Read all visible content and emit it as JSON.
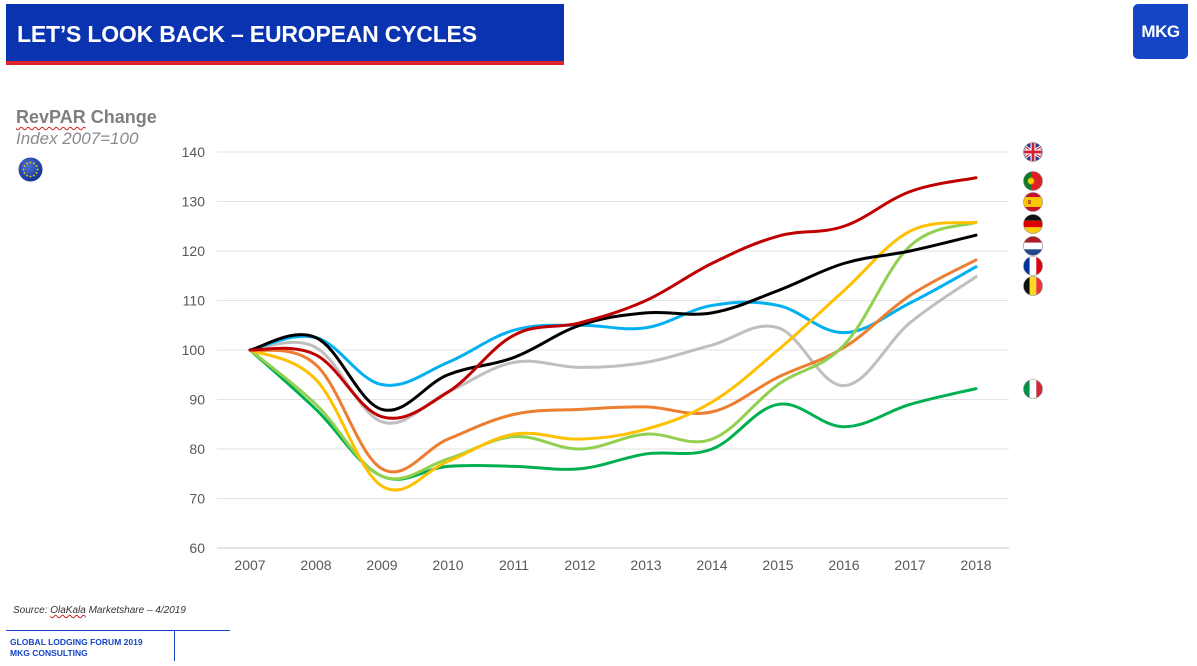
{
  "header": {
    "title": "LET’S LOOK BACK – EUROPEAN CYCLES",
    "logo": "MKG",
    "accent_color": "#0a33b0",
    "underline_color": "#e0242e"
  },
  "chart_data": {
    "type": "line",
    "title": "RevPAR Change",
    "subtitle": "Index 2007=100",
    "xlabel": "",
    "ylabel": "",
    "ylim": [
      60,
      140
    ],
    "yticks": [
      "60",
      "70",
      "80",
      "90",
      "100",
      "110",
      "120",
      "130",
      "140"
    ],
    "categories": [
      "2007",
      "2008",
      "2009",
      "2010",
      "2011",
      "2012",
      "2013",
      "2014",
      "2015",
      "2016",
      "2017",
      "2018"
    ],
    "grid": true,
    "legend": "flag icons at right",
    "series": [
      {
        "color": "#c00000",
        "values": [
          100,
          99,
          86.5,
          91.5,
          103,
          105.5,
          110,
          117.5,
          123,
          125,
          132,
          134.8
        ]
      },
      {
        "color": "#000000",
        "values": [
          100,
          102.5,
          88,
          95,
          98.5,
          105,
          107.5,
          107.5,
          112,
          117.5,
          120,
          123.2
        ]
      },
      {
        "color": "#ffc000",
        "values": [
          100,
          94,
          72.5,
          77.5,
          83,
          82,
          84,
          89.5,
          100,
          112,
          124,
          125.8
        ]
      },
      {
        "color": "#92d050",
        "values": [
          100,
          89,
          74.5,
          78,
          82.5,
          80,
          83,
          82,
          93,
          101,
          121,
          125.8
        ]
      },
      {
        "color": "#ed7d31",
        "values": [
          100,
          97,
          76,
          82,
          87,
          88,
          88.5,
          87.5,
          94.5,
          100.5,
          111,
          118.2
        ]
      },
      {
        "color": "#00b0f0",
        "values": [
          100,
          102.5,
          93,
          97.5,
          104,
          105,
          104.5,
          109,
          109,
          103.5,
          109.5,
          116.8
        ]
      },
      {
        "color": "#bfbfbf",
        "values": [
          100,
          100.5,
          85.5,
          91.5,
          97.5,
          96.5,
          97.5,
          101,
          104.5,
          92.8,
          105.5,
          114.8
        ]
      },
      {
        "color": "#00b050",
        "values": [
          100,
          88,
          74.5,
          76.5,
          76.5,
          76,
          79,
          80,
          89,
          84.5,
          89,
          92.2
        ]
      }
    ]
  },
  "legend_flags": [
    {
      "icon": "uk-flag-icon",
      "y": 140
    },
    {
      "icon": "portugal-flag-icon",
      "y": 134.2
    },
    {
      "icon": "spain-flag-icon",
      "y": 130
    },
    {
      "icon": "germany-flag-icon",
      "y": 125.5
    },
    {
      "icon": "netherlands-flag-icon",
      "y": 121
    },
    {
      "icon": "france-flag-icon",
      "y": 117
    },
    {
      "icon": "belgium-flag-icon",
      "y": 113
    },
    {
      "icon": "italy-flag-icon",
      "y": 92.2
    }
  ],
  "source": {
    "prefix": "Source: ",
    "name": "OlaKala",
    "suffix": " Marketshare – 4/2019"
  },
  "footer": {
    "line1": "GLOBAL LODGING FORUM 2019",
    "line2": "MKG CONSULTING"
  }
}
